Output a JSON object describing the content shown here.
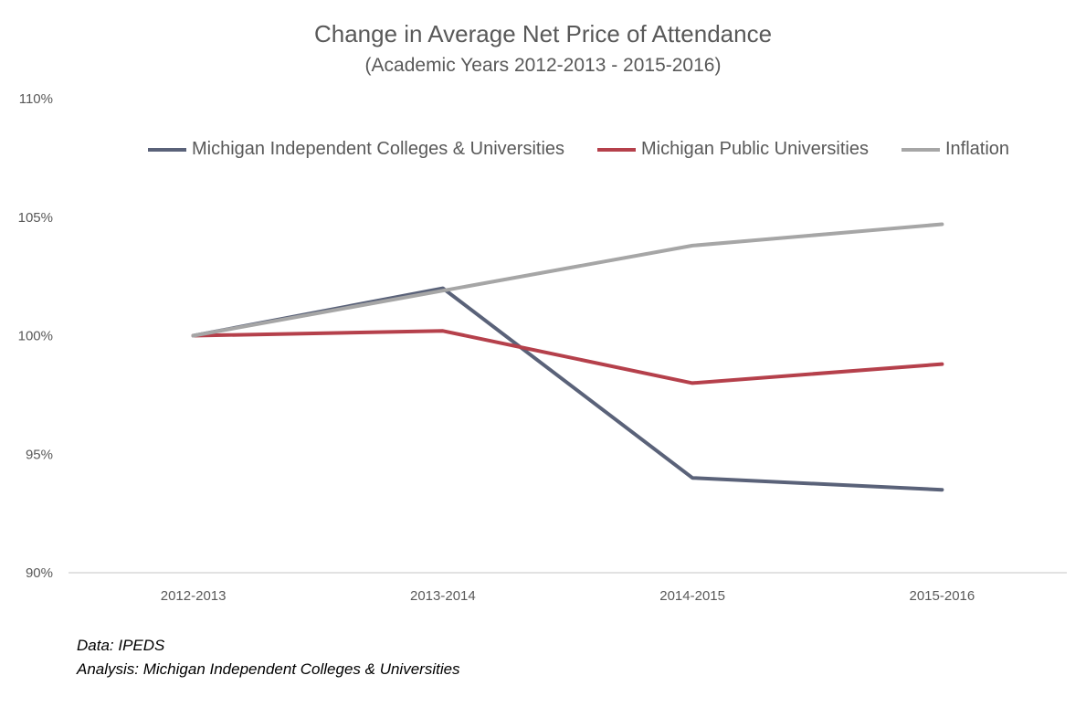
{
  "chart_data": {
    "type": "line",
    "title": "Change in Average Net Price of Attendance",
    "subtitle": "(Academic Years 2012-2013 - 2015-2016)",
    "categories": [
      "2012-2013",
      "2013-2014",
      "2014-2015",
      "2015-2016"
    ],
    "series": [
      {
        "name": "Michigan Independent Colleges & Universities",
        "color": "#5a6279",
        "values": [
          100.0,
          102.0,
          94.0,
          93.5
        ]
      },
      {
        "name": "Michigan Public Universities",
        "color": "#b5404b",
        "values": [
          100.0,
          100.2,
          98.0,
          98.8
        ]
      },
      {
        "name": "Inflation",
        "color": "#a6a6a6",
        "values": [
          100.0,
          101.9,
          103.8,
          104.7
        ]
      }
    ],
    "ylim": [
      90,
      110
    ],
    "yticks": [
      90,
      95,
      100,
      105,
      110
    ],
    "ytick_labels": [
      "90%",
      "95%",
      "100%",
      "105%",
      "110%"
    ],
    "xlabel": "",
    "ylabel": "",
    "grid": false,
    "legend_position": "top"
  },
  "footnotes": {
    "source": "Data: IPEDS",
    "analysis": "Analysis: Michigan Independent Colleges & Universities"
  }
}
